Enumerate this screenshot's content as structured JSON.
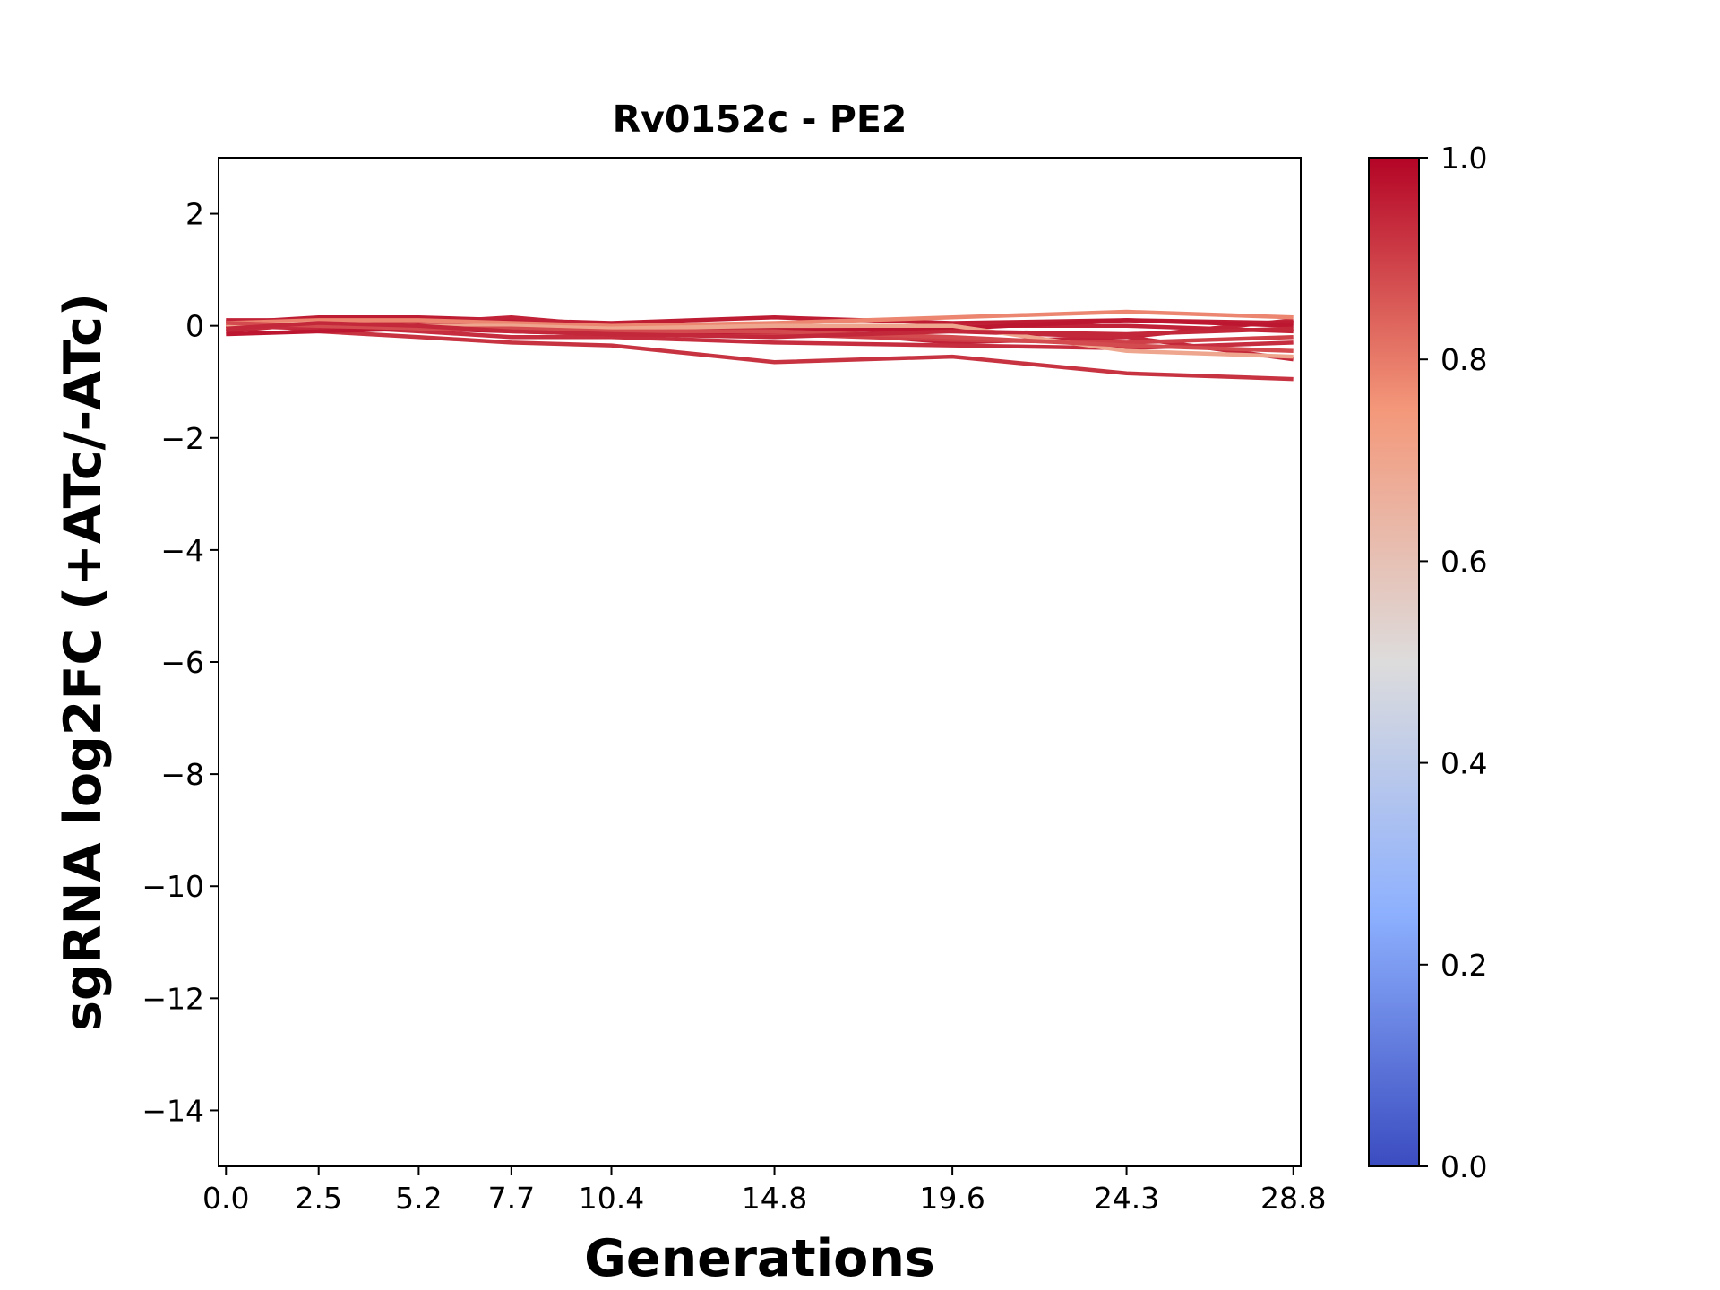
{
  "chart_data": {
    "type": "line",
    "title": "Rv0152c - PE2",
    "xlabel": "Generations",
    "ylabel": "sgRNA log2FC (+ATc/-ATc)",
    "x": [
      0.0,
      2.5,
      5.2,
      7.7,
      10.4,
      14.8,
      19.6,
      24.3,
      28.8
    ],
    "x_tick_labels": [
      "0.0",
      "2.5",
      "5.2",
      "7.7",
      "10.4",
      "14.8",
      "19.6",
      "24.3",
      "28.8"
    ],
    "xlim": [
      -0.2,
      29.0
    ],
    "ylim": [
      -15,
      3
    ],
    "y_ticks": [
      2,
      0,
      -2,
      -4,
      -6,
      -8,
      -10,
      -12,
      -14
    ],
    "grid": false,
    "colormap": "coolwarm",
    "colorbar": {
      "range": [
        0.0,
        1.0
      ],
      "ticks": [
        "0.0",
        "0.2",
        "0.4",
        "0.6",
        "0.8",
        "1.0"
      ]
    },
    "series": [
      {
        "color_value": 0.95,
        "values": [
          -0.1,
          0.05,
          0.1,
          0.05,
          -0.1,
          -0.05,
          -0.3,
          -0.2,
          0.1
        ]
      },
      {
        "color_value": 0.92,
        "values": [
          0.1,
          -0.1,
          -0.2,
          -0.3,
          -0.35,
          -0.65,
          -0.55,
          -0.85,
          -0.95
        ]
      },
      {
        "color_value": 0.94,
        "values": [
          0.0,
          -0.05,
          0.0,
          -0.05,
          -0.1,
          -0.05,
          -0.1,
          -0.2,
          -0.6
        ]
      },
      {
        "color_value": 0.96,
        "values": [
          0.05,
          0.15,
          0.15,
          0.1,
          0.05,
          0.15,
          0.05,
          0.1,
          0.05
        ]
      },
      {
        "color_value": 0.93,
        "values": [
          -0.05,
          0.0,
          -0.1,
          -0.2,
          -0.2,
          -0.3,
          -0.35,
          -0.4,
          -0.3
        ]
      },
      {
        "color_value": 0.9,
        "values": [
          0.0,
          0.05,
          0.05,
          0.0,
          -0.05,
          -0.15,
          -0.25,
          -0.3,
          -0.2
        ]
      },
      {
        "color_value": 0.95,
        "values": [
          0.1,
          0.1,
          0.05,
          0.15,
          0.0,
          0.0,
          0.0,
          0.0,
          -0.1
        ]
      },
      {
        "color_value": 0.97,
        "values": [
          -0.15,
          -0.1,
          -0.05,
          -0.1,
          -0.15,
          -0.1,
          -0.05,
          0.1,
          0.0
        ]
      },
      {
        "color_value": 0.78,
        "values": [
          0.05,
          0.1,
          0.1,
          0.05,
          0.0,
          0.05,
          0.15,
          0.25,
          0.15
        ]
      },
      {
        "color_value": 0.7,
        "values": [
          0.0,
          0.05,
          0.0,
          0.0,
          -0.05,
          0.0,
          0.0,
          -0.45,
          -0.55
        ]
      },
      {
        "color_value": 0.88,
        "values": [
          0.05,
          0.0,
          -0.05,
          -0.05,
          -0.1,
          -0.1,
          -0.2,
          -0.35,
          -0.45
        ]
      },
      {
        "color_value": 0.94,
        "values": [
          -0.05,
          0.05,
          0.0,
          -0.1,
          -0.15,
          -0.2,
          -0.1,
          -0.15,
          -0.05
        ]
      }
    ]
  }
}
